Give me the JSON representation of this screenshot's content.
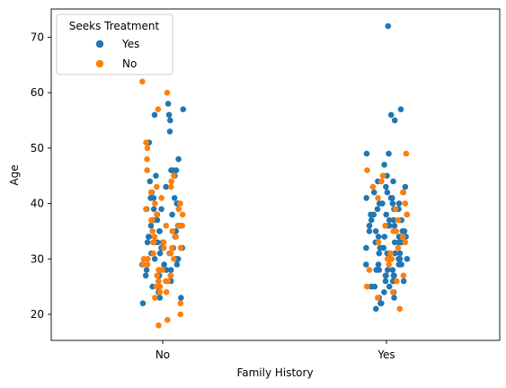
{
  "chart_data": {
    "type": "scatter",
    "subtype": "strip",
    "title": "",
    "xlabel": "Family History",
    "ylabel": "Age",
    "categories": [
      "No",
      "Yes"
    ],
    "ylim": [
      15.3,
      75.1
    ],
    "yticks": [
      20,
      30,
      40,
      50,
      60,
      70
    ],
    "grid": false,
    "legend": {
      "title": "Seeks Treatment",
      "placement": "top-left",
      "entries": [
        "Yes",
        "No"
      ]
    },
    "colors": {
      "Yes": "#1f77b4",
      "No": "#ff7f0e"
    },
    "series": [
      {
        "name": "Yes",
        "points": [
          [
            "No",
            56
          ],
          [
            "No",
            56
          ],
          [
            "No",
            58
          ],
          [
            "No",
            57
          ],
          [
            "No",
            55
          ],
          [
            "No",
            53
          ],
          [
            "No",
            51
          ],
          [
            "No",
            48
          ],
          [
            "No",
            46
          ],
          [
            "No",
            46
          ],
          [
            "No",
            46
          ],
          [
            "No",
            45
          ],
          [
            "No",
            45
          ],
          [
            "No",
            44
          ],
          [
            "No",
            43
          ],
          [
            "No",
            42
          ],
          [
            "No",
            41
          ],
          [
            "No",
            41
          ],
          [
            "No",
            40
          ],
          [
            "No",
            40
          ],
          [
            "No",
            39
          ],
          [
            "No",
            39
          ],
          [
            "No",
            38
          ],
          [
            "No",
            38
          ],
          [
            "No",
            37
          ],
          [
            "No",
            37
          ],
          [
            "No",
            36
          ],
          [
            "No",
            36
          ],
          [
            "No",
            35
          ],
          [
            "No",
            35
          ],
          [
            "No",
            35
          ],
          [
            "No",
            34
          ],
          [
            "No",
            34
          ],
          [
            "No",
            33
          ],
          [
            "No",
            33
          ],
          [
            "No",
            33
          ],
          [
            "No",
            32
          ],
          [
            "No",
            32
          ],
          [
            "No",
            32
          ],
          [
            "No",
            31
          ],
          [
            "No",
            31
          ],
          [
            "No",
            30
          ],
          [
            "No",
            30
          ],
          [
            "No",
            30
          ],
          [
            "No",
            29
          ],
          [
            "No",
            29
          ],
          [
            "No",
            28
          ],
          [
            "No",
            28
          ],
          [
            "No",
            28
          ],
          [
            "No",
            27
          ],
          [
            "No",
            27
          ],
          [
            "No",
            26
          ],
          [
            "No",
            26
          ],
          [
            "No",
            25
          ],
          [
            "No",
            25
          ],
          [
            "No",
            24
          ],
          [
            "No",
            24
          ],
          [
            "No",
            23
          ],
          [
            "No",
            23
          ],
          [
            "No",
            22
          ],
          [
            "No",
            37
          ],
          [
            "No",
            33
          ],
          [
            "No",
            31
          ],
          [
            "No",
            29
          ],
          [
            "No",
            39
          ],
          [
            "No",
            41
          ],
          [
            "No",
            27
          ],
          [
            "No",
            36
          ],
          [
            "No",
            34
          ],
          [
            "No",
            32
          ],
          [
            "Yes",
            72
          ],
          [
            "Yes",
            57
          ],
          [
            "Yes",
            56
          ],
          [
            "Yes",
            55
          ],
          [
            "Yes",
            49
          ],
          [
            "Yes",
            49
          ],
          [
            "Yes",
            47
          ],
          [
            "Yes",
            45
          ],
          [
            "Yes",
            44
          ],
          [
            "Yes",
            44
          ],
          [
            "Yes",
            43
          ],
          [
            "Yes",
            43
          ],
          [
            "Yes",
            42
          ],
          [
            "Yes",
            42
          ],
          [
            "Yes",
            42
          ],
          [
            "Yes",
            41
          ],
          [
            "Yes",
            41
          ],
          [
            "Yes",
            41
          ],
          [
            "Yes",
            40
          ],
          [
            "Yes",
            40
          ],
          [
            "Yes",
            40
          ],
          [
            "Yes",
            39
          ],
          [
            "Yes",
            39
          ],
          [
            "Yes",
            39
          ],
          [
            "Yes",
            38
          ],
          [
            "Yes",
            38
          ],
          [
            "Yes",
            38
          ],
          [
            "Yes",
            37
          ],
          [
            "Yes",
            37
          ],
          [
            "Yes",
            37
          ],
          [
            "Yes",
            36
          ],
          [
            "Yes",
            36
          ],
          [
            "Yes",
            36
          ],
          [
            "Yes",
            35
          ],
          [
            "Yes",
            35
          ],
          [
            "Yes",
            35
          ],
          [
            "Yes",
            34
          ],
          [
            "Yes",
            34
          ],
          [
            "Yes",
            34
          ],
          [
            "Yes",
            33
          ],
          [
            "Yes",
            33
          ],
          [
            "Yes",
            33
          ],
          [
            "Yes",
            32
          ],
          [
            "Yes",
            32
          ],
          [
            "Yes",
            32
          ],
          [
            "Yes",
            31
          ],
          [
            "Yes",
            31
          ],
          [
            "Yes",
            31
          ],
          [
            "Yes",
            30
          ],
          [
            "Yes",
            30
          ],
          [
            "Yes",
            30
          ],
          [
            "Yes",
            29
          ],
          [
            "Yes",
            29
          ],
          [
            "Yes",
            29
          ],
          [
            "Yes",
            28
          ],
          [
            "Yes",
            28
          ],
          [
            "Yes",
            28
          ],
          [
            "Yes",
            27
          ],
          [
            "Yes",
            27
          ],
          [
            "Yes",
            27
          ],
          [
            "Yes",
            26
          ],
          [
            "Yes",
            26
          ],
          [
            "Yes",
            26
          ],
          [
            "Yes",
            25
          ],
          [
            "Yes",
            25
          ],
          [
            "Yes",
            25
          ],
          [
            "Yes",
            24
          ],
          [
            "Yes",
            24
          ],
          [
            "Yes",
            23
          ],
          [
            "Yes",
            23
          ],
          [
            "Yes",
            22
          ],
          [
            "Yes",
            22
          ],
          [
            "Yes",
            21
          ],
          [
            "Yes",
            40
          ],
          [
            "Yes",
            38
          ],
          [
            "Yes",
            36
          ],
          [
            "Yes",
            34
          ],
          [
            "Yes",
            33
          ],
          [
            "Yes",
            31
          ],
          [
            "Yes",
            30
          ],
          [
            "Yes",
            29
          ],
          [
            "Yes",
            28
          ],
          [
            "Yes",
            27
          ],
          [
            "Yes",
            26
          ],
          [
            "Yes",
            37
          ],
          [
            "Yes",
            35
          ],
          [
            "Yes",
            32
          ]
        ]
      },
      {
        "name": "No",
        "points": [
          [
            "No",
            62
          ],
          [
            "No",
            60
          ],
          [
            "No",
            57
          ],
          [
            "No",
            51
          ],
          [
            "No",
            50
          ],
          [
            "No",
            48
          ],
          [
            "No",
            46
          ],
          [
            "No",
            45
          ],
          [
            "No",
            44
          ],
          [
            "No",
            43
          ],
          [
            "No",
            43
          ],
          [
            "No",
            42
          ],
          [
            "No",
            41
          ],
          [
            "No",
            40
          ],
          [
            "No",
            40
          ],
          [
            "No",
            39
          ],
          [
            "No",
            39
          ],
          [
            "No",
            38
          ],
          [
            "No",
            38
          ],
          [
            "No",
            37
          ],
          [
            "No",
            37
          ],
          [
            "No",
            36
          ],
          [
            "No",
            36
          ],
          [
            "No",
            35
          ],
          [
            "No",
            35
          ],
          [
            "No",
            34
          ],
          [
            "No",
            34
          ],
          [
            "No",
            33
          ],
          [
            "No",
            33
          ],
          [
            "No",
            32
          ],
          [
            "No",
            32
          ],
          [
            "No",
            31
          ],
          [
            "No",
            31
          ],
          [
            "No",
            31
          ],
          [
            "No",
            30
          ],
          [
            "No",
            30
          ],
          [
            "No",
            29
          ],
          [
            "No",
            29
          ],
          [
            "No",
            28
          ],
          [
            "No",
            28
          ],
          [
            "No",
            27
          ],
          [
            "No",
            27
          ],
          [
            "No",
            26
          ],
          [
            "No",
            26
          ],
          [
            "No",
            25
          ],
          [
            "No",
            25
          ],
          [
            "No",
            24
          ],
          [
            "No",
            24
          ],
          [
            "No",
            23
          ],
          [
            "No",
            22
          ],
          [
            "No",
            20
          ],
          [
            "No",
            19
          ],
          [
            "No",
            18
          ],
          [
            "No",
            36
          ],
          [
            "No",
            33
          ],
          [
            "No",
            30
          ],
          [
            "No",
            28
          ],
          [
            "No",
            26
          ],
          [
            "No",
            32
          ],
          [
            "Yes",
            49
          ],
          [
            "Yes",
            46
          ],
          [
            "Yes",
            45
          ],
          [
            "Yes",
            44
          ],
          [
            "Yes",
            43
          ],
          [
            "Yes",
            42
          ],
          [
            "Yes",
            41
          ],
          [
            "Yes",
            40
          ],
          [
            "Yes",
            39
          ],
          [
            "Yes",
            38
          ],
          [
            "Yes",
            37
          ],
          [
            "Yes",
            36
          ],
          [
            "Yes",
            35
          ],
          [
            "Yes",
            34
          ],
          [
            "Yes",
            33
          ],
          [
            "Yes",
            32
          ],
          [
            "Yes",
            31
          ],
          [
            "Yes",
            30
          ],
          [
            "Yes",
            29
          ],
          [
            "Yes",
            28
          ],
          [
            "Yes",
            27
          ],
          [
            "Yes",
            26
          ],
          [
            "Yes",
            25
          ],
          [
            "Yes",
            24
          ],
          [
            "Yes",
            23
          ],
          [
            "Yes",
            21
          ],
          [
            "Yes",
            35
          ],
          [
            "Yes",
            33
          ],
          [
            "Yes",
            30
          ]
        ]
      }
    ]
  }
}
